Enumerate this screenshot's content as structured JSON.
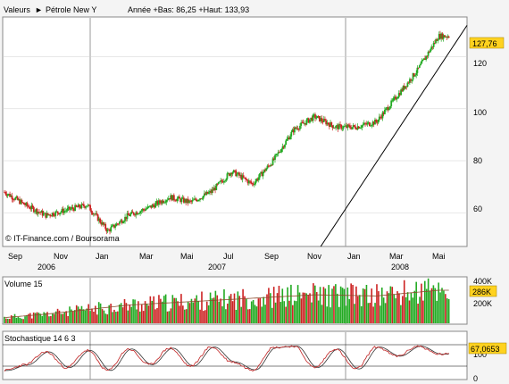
{
  "header": {
    "label_valeurs": "Valeurs",
    "instrument": "Pétrole New Y",
    "range_text": "Année +Bas: 86,25 +Haut: 133,93"
  },
  "price_panel": {
    "watermark": "© IT-Finance.com / Boursorama",
    "last_value_badge": "127,76",
    "y_ticks": [
      "120",
      "100",
      "80",
      "60"
    ],
    "x_month_labels": [
      "Sep",
      "Nov",
      "Jan",
      "Mar",
      "Mai",
      "Jul",
      "Sep",
      "Nov",
      "Jan",
      "Mar",
      "Mai"
    ],
    "year_labels": [
      "2006",
      "2007",
      "2008"
    ]
  },
  "volume_panel": {
    "title": "Volume 15",
    "last_value_badge": "286K",
    "y_ticks": [
      "400K",
      "200K"
    ]
  },
  "stoch_panel": {
    "title": "Stochastique 14 6 3",
    "last_value_badge": "67,0653",
    "y_ticks": [
      "100",
      "0"
    ]
  },
  "colors": {
    "up": "#22aa22",
    "down": "#cc2222",
    "badge": "#ffd21f",
    "background": "#f4f4f4",
    "panel": "#ffffff",
    "grid": "#cfcfcf"
  },
  "chart_data": [
    {
      "type": "candlestick",
      "x_unit": "date",
      "y_unit": "USD / barrel",
      "ylim": [
        47,
        135
      ],
      "x_labels": [
        "Sep 2006",
        "Nov 2006",
        "Jan 2007",
        "Mar 2007",
        "Mai 2007",
        "Jul 2007",
        "Sep 2007",
        "Nov 2007",
        "Jan 2008",
        "Mar 2008",
        "Mai 2008"
      ],
      "series": [
        {
          "values": [
            [
              "2006-08",
              68
            ],
            [
              "2006-09",
              63
            ],
            [
              "2006-10",
              59
            ],
            [
              "2006-11",
              61
            ],
            [
              "2006-12",
              63
            ],
            [
              "2007-01",
              53
            ],
            [
              "2007-02",
              59
            ],
            [
              "2007-03",
              62
            ],
            [
              "2007-04",
              66
            ],
            [
              "2007-05",
              64
            ],
            [
              "2007-06",
              68
            ],
            [
              "2007-07",
              76
            ],
            [
              "2007-08",
              71
            ],
            [
              "2007-09",
              80
            ],
            [
              "2007-10",
              92
            ],
            [
              "2007-11",
              97
            ],
            [
              "2007-12",
              93
            ],
            [
              "2008-01",
              93
            ],
            [
              "2008-02",
              95
            ],
            [
              "2008-03",
              105
            ],
            [
              "2008-04",
              115
            ],
            [
              "2008-05",
              128
            ]
          ]
        }
      ],
      "trendline": [
        [
          "2007-11",
          47
        ],
        [
          "2008-05",
          128
        ]
      ],
      "last": 127.76
    },
    {
      "type": "bar",
      "x_unit": "date",
      "ylim": [
        0,
        400000
      ],
      "series": [
        {
          "name": "Volume 15",
          "values": [
            [
              "2006-08",
              50000
            ],
            [
              "2006-10",
              80000
            ],
            [
              "2006-12",
              120000
            ],
            [
              "2007-02",
              160000
            ],
            [
              "2007-05",
              190000
            ],
            [
              "2007-08",
              220000
            ],
            [
              "2007-11",
              250000
            ],
            [
              "2008-02",
              240000
            ],
            [
              "2008-05",
              290000
            ]
          ]
        }
      ],
      "last": 286000
    },
    {
      "type": "line",
      "x_unit": "date",
      "ylim": [
        0,
        100
      ],
      "series": [
        {
          "name": "Stochastique 14 6 3",
          "values": [
            [
              "2006-08",
              10
            ],
            [
              "2006-09",
              30
            ],
            [
              "2006-10",
              75
            ],
            [
              "2006-11",
              20
            ],
            [
              "2006-12",
              80
            ],
            [
              "2007-01",
              10
            ],
            [
              "2007-02",
              85
            ],
            [
              "2007-03",
              30
            ],
            [
              "2007-04",
              88
            ],
            [
              "2007-05",
              25
            ],
            [
              "2007-06",
              92
            ],
            [
              "2007-07",
              40
            ],
            [
              "2007-08",
              12
            ],
            [
              "2007-09",
              90
            ],
            [
              "2007-10",
              95
            ],
            [
              "2007-11",
              20
            ],
            [
              "2007-12",
              85
            ],
            [
              "2008-01",
              15
            ],
            [
              "2008-02",
              92
            ],
            [
              "2008-03",
              60
            ],
            [
              "2008-04",
              95
            ],
            [
              "2008-05",
              67
            ]
          ]
        }
      ],
      "last": 67.0653
    }
  ]
}
